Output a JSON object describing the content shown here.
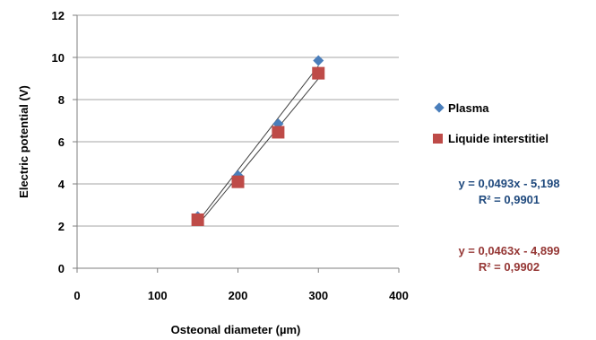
{
  "chart_data": {
    "type": "scatter",
    "xlabel": "Osteonal diameter (µm)",
    "ylabel": "Electric potential (V)",
    "xlim": [
      0,
      400
    ],
    "ylim": [
      0,
      12
    ],
    "x_ticks": [
      "0",
      "100",
      "200",
      "300",
      "400"
    ],
    "y_ticks": [
      "0",
      "2",
      "4",
      "6",
      "8",
      "10",
      "12"
    ],
    "grid": "horizontal",
    "legend_position": "right",
    "series": [
      {
        "name": "Plasma",
        "marker": "diamond",
        "color": "#4a7ebb",
        "x": [
          150,
          200,
          250,
          300
        ],
        "y": [
          2.45,
          4.4,
          6.85,
          9.85
        ],
        "trendline": {
          "slope": 0.0493,
          "intercept": -5.198
        },
        "equation": "y = 0,0493x - 5,198",
        "r2": "R² = 0,9901"
      },
      {
        "name": "Liquide interstitiel",
        "marker": "square",
        "color": "#be4b48",
        "x": [
          150,
          200,
          250,
          300
        ],
        "y": [
          2.3,
          4.1,
          6.45,
          9.25
        ],
        "trendline": {
          "slope": 0.0463,
          "intercept": -4.899
        },
        "equation": "y = 0,0463x - 4,899",
        "r2": "R² = 0,9902"
      }
    ]
  }
}
